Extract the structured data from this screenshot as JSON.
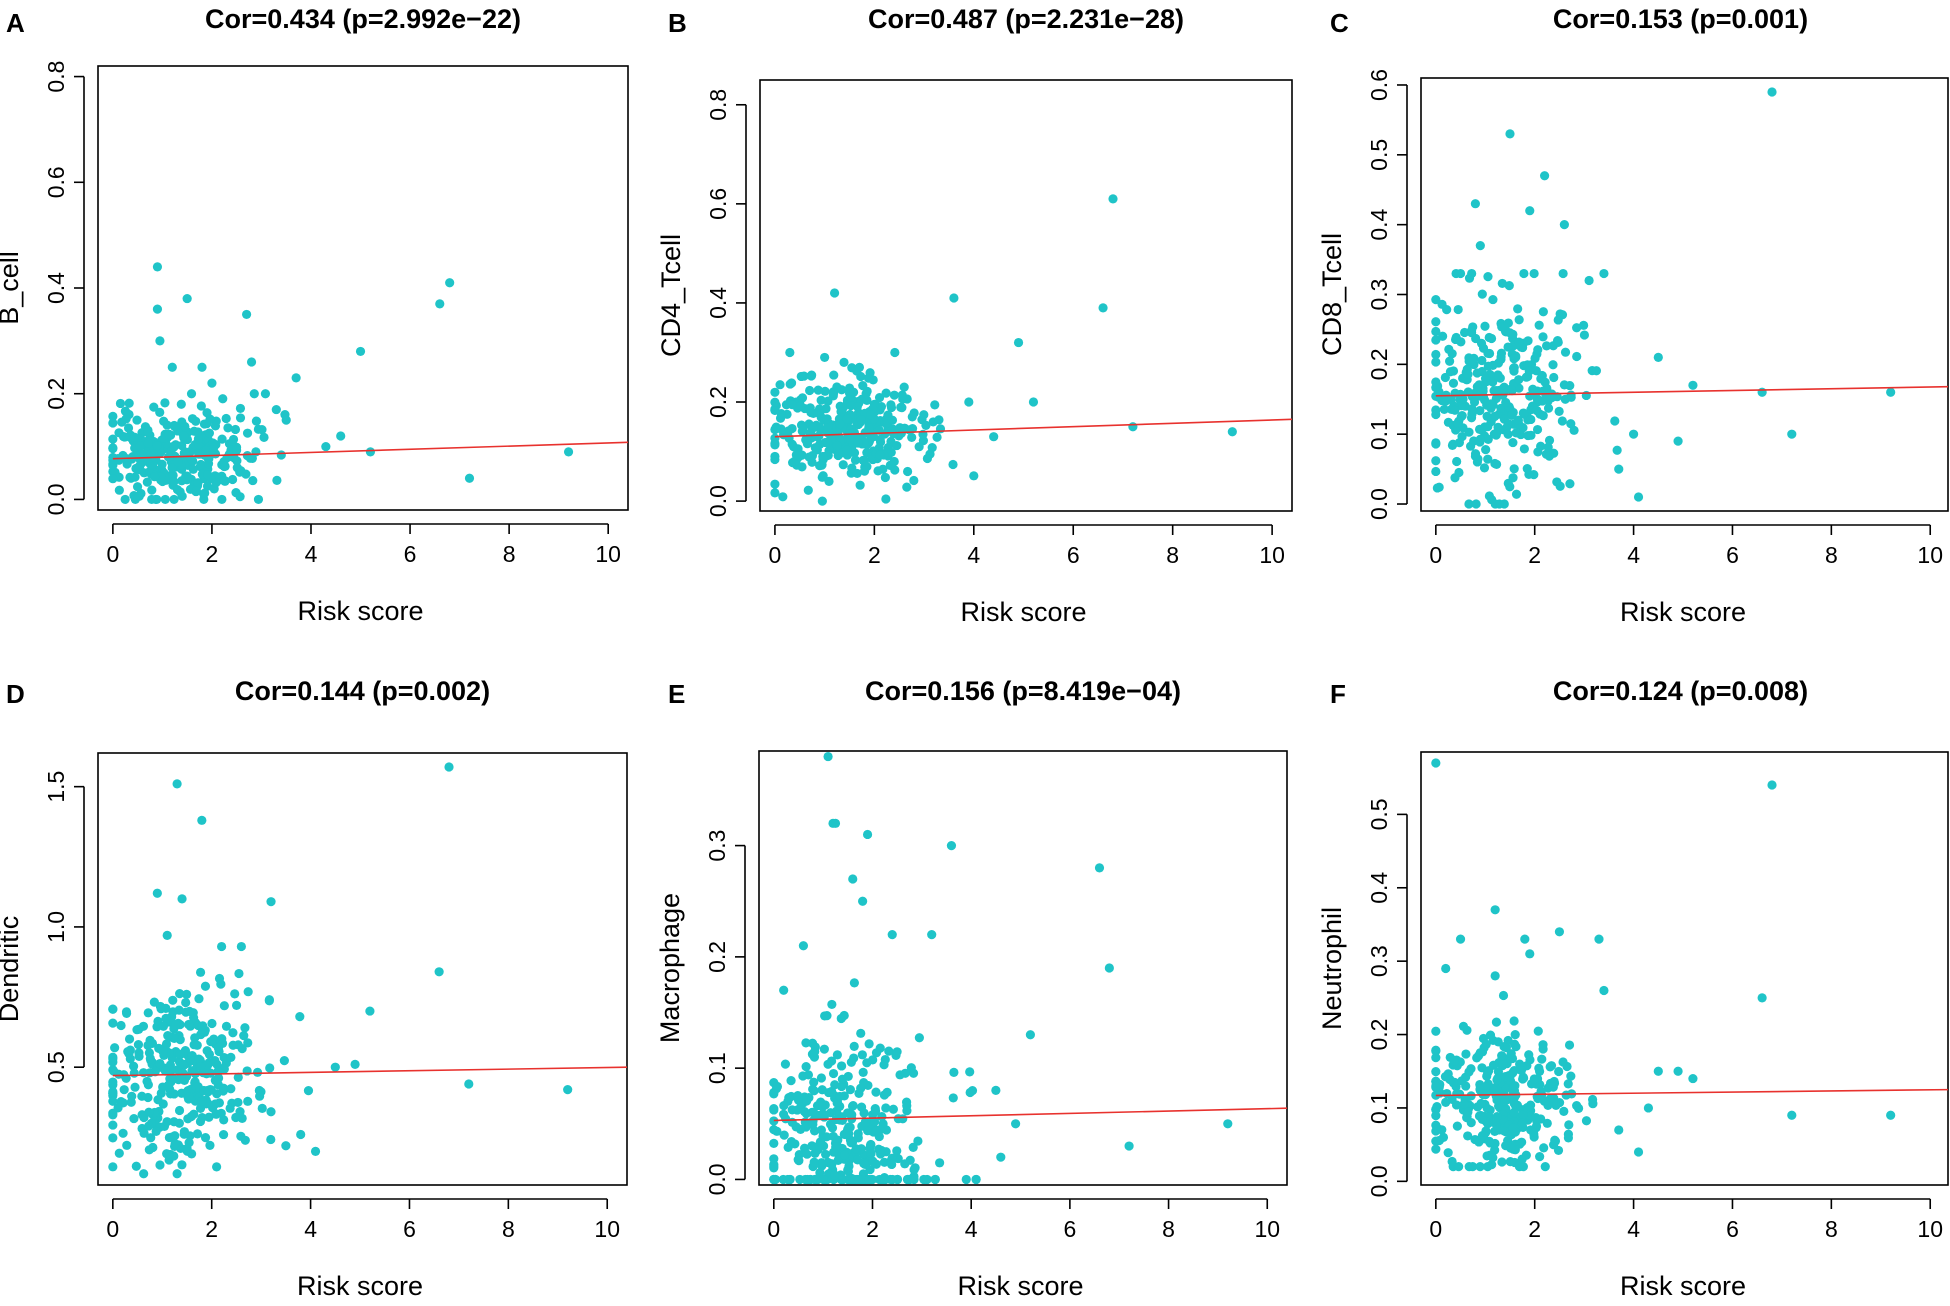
{
  "colors": {
    "point": "#1fc4c8",
    "fit_line": "#e8322e",
    "axis": "#000000"
  },
  "chart_data": [
    {
      "id": "A",
      "type": "scatter",
      "panel_label": "A",
      "title": "Cor=0.434 (p=2.992e−22)",
      "xlabel": "Risk score",
      "ylabel": "B_cell",
      "xlim": [
        -0.3,
        10.4
      ],
      "ylim": [
        -0.02,
        0.82
      ],
      "xticks": [
        0,
        2,
        4,
        6,
        8,
        10
      ],
      "xtick_labels": [
        "0",
        "2",
        "4",
        "6",
        "8",
        "10"
      ],
      "yticks": [
        0.0,
        0.2,
        0.4,
        0.6,
        0.8
      ],
      "ytick_labels": [
        "0.0",
        "0.2",
        "0.4",
        "0.6",
        "0.8"
      ],
      "fit_line": {
        "x": [
          0,
          10.4
        ],
        "y": [
          0.077,
          0.108
        ]
      },
      "cluster": {
        "n": 300,
        "xmean": 1.3,
        "xsd": 0.75,
        "xmax": 3.9,
        "ymean": 0.08,
        "ysd": 0.045,
        "ymin": 0.0,
        "ymax": 0.2,
        "seed": 11
      },
      "points": [
        [
          0.9,
          0.44
        ],
        [
          1.5,
          0.38
        ],
        [
          0.9,
          0.36
        ],
        [
          0.95,
          0.3
        ],
        [
          1.8,
          0.25
        ],
        [
          2.7,
          0.35
        ],
        [
          2.8,
          0.26
        ],
        [
          2.0,
          0.22
        ],
        [
          3.3,
          0.17
        ],
        [
          3.7,
          0.23
        ],
        [
          4.3,
          0.1
        ],
        [
          4.6,
          0.12
        ],
        [
          5.0,
          0.28
        ],
        [
          5.2,
          0.09
        ],
        [
          6.6,
          0.37
        ],
        [
          6.8,
          0.41
        ],
        [
          7.2,
          0.04
        ],
        [
          9.2,
          0.09
        ],
        [
          3.5,
          0.15
        ],
        [
          1.2,
          0.25
        ]
      ]
    },
    {
      "id": "B",
      "type": "scatter",
      "panel_label": "B",
      "title": "Cor=0.487 (p=2.231e−28)",
      "xlabel": "Risk score",
      "ylabel": "CD4_Tcell",
      "xlim": [
        -0.3,
        10.4
      ],
      "ylim": [
        -0.02,
        0.85
      ],
      "xticks": [
        0,
        2,
        4,
        6,
        8,
        10
      ],
      "xtick_labels": [
        "0",
        "2",
        "4",
        "6",
        "8",
        "10"
      ],
      "yticks": [
        0.0,
        0.2,
        0.4,
        0.6,
        0.8
      ],
      "ytick_labels": [
        "0.0",
        "0.2",
        "0.4",
        "0.6",
        "0.8"
      ],
      "fit_line": {
        "x": [
          0,
          10.4
        ],
        "y": [
          0.13,
          0.165
        ]
      },
      "cluster": {
        "n": 320,
        "xmean": 1.4,
        "xsd": 0.8,
        "xmax": 4.0,
        "ymean": 0.14,
        "ysd": 0.055,
        "ymin": 0.0,
        "ymax": 0.3,
        "seed": 23
      },
      "points": [
        [
          1.2,
          0.42
        ],
        [
          3.6,
          0.41
        ],
        [
          4.9,
          0.32
        ],
        [
          5.2,
          0.2
        ],
        [
          6.6,
          0.39
        ],
        [
          6.8,
          0.61
        ],
        [
          7.2,
          0.15
        ],
        [
          9.2,
          0.14
        ],
        [
          4.4,
          0.13
        ],
        [
          3.9,
          0.2
        ],
        [
          2.6,
          0.23
        ],
        [
          1.0,
          0.29
        ],
        [
          0.3,
          0.3
        ],
        [
          1.7,
          0.27
        ],
        [
          2.4,
          0.08
        ]
      ]
    },
    {
      "id": "C",
      "type": "scatter",
      "panel_label": "C",
      "title": "Cor=0.153 (p=0.001)",
      "xlabel": "Risk score",
      "ylabel": "CD8_Tcell",
      "xlim": [
        -0.3,
        10.4
      ],
      "ylim": [
        -0.01,
        0.61
      ],
      "xticks": [
        0,
        2,
        4,
        6,
        8,
        10
      ],
      "xtick_labels": [
        "0",
        "2",
        "4",
        "6",
        "8",
        "10"
      ],
      "yticks": [
        0.0,
        0.1,
        0.2,
        0.3,
        0.4,
        0.5,
        0.6
      ],
      "ytick_labels": [
        "0.0",
        "0.1",
        "0.2",
        "0.3",
        "0.4",
        "0.5",
        "0.6"
      ],
      "fit_line": {
        "x": [
          0,
          10.4
        ],
        "y": [
          0.155,
          0.168
        ]
      },
      "cluster": {
        "n": 330,
        "xmean": 1.35,
        "xsd": 0.8,
        "xmax": 4.1,
        "ymean": 0.16,
        "ysd": 0.07,
        "ymin": 0.0,
        "ymax": 0.33,
        "seed": 37
      },
      "points": [
        [
          1.5,
          0.53
        ],
        [
          2.2,
          0.47
        ],
        [
          0.8,
          0.43
        ],
        [
          1.9,
          0.42
        ],
        [
          2.6,
          0.4
        ],
        [
          0.9,
          0.37
        ],
        [
          6.8,
          0.59
        ],
        [
          4.5,
          0.21
        ],
        [
          5.2,
          0.17
        ],
        [
          6.6,
          0.16
        ],
        [
          7.2,
          0.1
        ],
        [
          9.2,
          0.16
        ],
        [
          4.1,
          0.01
        ],
        [
          3.7,
          0.05
        ],
        [
          4.0,
          0.1
        ],
        [
          3.4,
          0.33
        ],
        [
          3.1,
          0.32
        ],
        [
          0.5,
          0.33
        ],
        [
          4.9,
          0.09
        ]
      ]
    },
    {
      "id": "D",
      "type": "scatter",
      "panel_label": "D",
      "title": "Cor=0.144 (p=0.002)",
      "xlabel": "Risk score",
      "ylabel": "Dendritic",
      "xlim": [
        -0.3,
        10.4
      ],
      "ylim": [
        0.08,
        1.62
      ],
      "xticks": [
        0,
        2,
        4,
        6,
        8,
        10
      ],
      "xtick_labels": [
        "0",
        "2",
        "4",
        "6",
        "8",
        "10"
      ],
      "yticks": [
        0.5,
        1.0,
        1.5
      ],
      "ytick_labels": [
        "0.5",
        "1.0",
        "1.5"
      ],
      "fit_line": {
        "x": [
          0,
          10.4
        ],
        "y": [
          0.47,
          0.5
        ]
      },
      "cluster": {
        "n": 330,
        "xmean": 1.35,
        "xsd": 0.8,
        "xmax": 4.1,
        "ymean": 0.47,
        "ysd": 0.15,
        "ymin": 0.12,
        "ymax": 0.9,
        "seed": 53
      },
      "points": [
        [
          1.3,
          1.51
        ],
        [
          1.8,
          1.38
        ],
        [
          6.8,
          1.57
        ],
        [
          0.9,
          1.12
        ],
        [
          1.4,
          1.1
        ],
        [
          3.2,
          1.09
        ],
        [
          1.1,
          0.97
        ],
        [
          2.2,
          0.93
        ],
        [
          2.6,
          0.93
        ],
        [
          6.6,
          0.84
        ],
        [
          5.2,
          0.7
        ],
        [
          4.5,
          0.5
        ],
        [
          4.9,
          0.51
        ],
        [
          7.2,
          0.44
        ],
        [
          9.2,
          0.42
        ],
        [
          4.1,
          0.2
        ],
        [
          3.8,
          0.26
        ],
        [
          3.5,
          0.22
        ],
        [
          1.3,
          0.12
        ]
      ]
    },
    {
      "id": "E",
      "type": "scatter",
      "panel_label": "E",
      "title": "Cor=0.156 (p=8.419e−04)",
      "xlabel": "Risk score",
      "ylabel": "Macrophage",
      "xlim": [
        -0.3,
        10.4
      ],
      "ylim": [
        -0.005,
        0.385
      ],
      "xticks": [
        0,
        2,
        4,
        6,
        8,
        10
      ],
      "xtick_labels": [
        "0",
        "2",
        "4",
        "6",
        "8",
        "10"
      ],
      "yticks": [
        0.0,
        0.1,
        0.2,
        0.3
      ],
      "ytick_labels": [
        "0.0",
        "0.1",
        "0.2",
        "0.3"
      ],
      "fit_line": {
        "x": [
          0,
          10.4
        ],
        "y": [
          0.053,
          0.064
        ]
      },
      "cluster": {
        "n": 340,
        "xmean": 1.4,
        "xsd": 0.85,
        "xmax": 4.1,
        "ymean": 0.045,
        "ysd": 0.045,
        "ymin": 0.0,
        "ymax": 0.18,
        "seed": 71
      },
      "points": [
        [
          1.1,
          0.38
        ],
        [
          1.2,
          0.32
        ],
        [
          1.25,
          0.32
        ],
        [
          1.9,
          0.31
        ],
        [
          3.6,
          0.3
        ],
        [
          1.6,
          0.27
        ],
        [
          1.8,
          0.25
        ],
        [
          2.4,
          0.22
        ],
        [
          3.2,
          0.22
        ],
        [
          6.6,
          0.28
        ],
        [
          6.8,
          0.19
        ],
        [
          5.2,
          0.13
        ],
        [
          4.5,
          0.08
        ],
        [
          4.9,
          0.05
        ],
        [
          7.2,
          0.03
        ],
        [
          9.2,
          0.05
        ],
        [
          4.6,
          0.02
        ],
        [
          3.9,
          0.0
        ],
        [
          4.1,
          0.0
        ],
        [
          0.2,
          0.17
        ],
        [
          0.6,
          0.21
        ]
      ]
    },
    {
      "id": "F",
      "type": "scatter",
      "panel_label": "F",
      "title": "Cor=0.124 (p=0.008)",
      "xlabel": "Risk score",
      "ylabel": "Neutrophil",
      "xlim": [
        -0.3,
        10.4
      ],
      "ylim": [
        -0.005,
        0.585
      ],
      "xticks": [
        0,
        2,
        4,
        6,
        8,
        10
      ],
      "xtick_labels": [
        "0",
        "2",
        "4",
        "6",
        "8",
        "10"
      ],
      "yticks": [
        0.0,
        0.1,
        0.2,
        0.3,
        0.4,
        0.5
      ],
      "ytick_labels": [
        "0.0",
        "0.1",
        "0.2",
        "0.3",
        "0.4",
        "0.5"
      ],
      "fit_line": {
        "x": [
          0,
          10.4
        ],
        "y": [
          0.117,
          0.125
        ]
      },
      "cluster": {
        "n": 330,
        "xmean": 1.3,
        "xsd": 0.75,
        "xmax": 4.0,
        "ymean": 0.11,
        "ysd": 0.045,
        "ymin": 0.02,
        "ymax": 0.26,
        "seed": 89
      },
      "points": [
        [
          0.0,
          0.57
        ],
        [
          6.8,
          0.54
        ],
        [
          1.2,
          0.37
        ],
        [
          2.5,
          0.34
        ],
        [
          1.8,
          0.33
        ],
        [
          0.5,
          0.33
        ],
        [
          3.3,
          0.33
        ],
        [
          1.9,
          0.31
        ],
        [
          0.2,
          0.29
        ],
        [
          1.2,
          0.28
        ],
        [
          3.4,
          0.26
        ],
        [
          6.6,
          0.25
        ],
        [
          4.5,
          0.15
        ],
        [
          4.9,
          0.15
        ],
        [
          5.2,
          0.14
        ],
        [
          7.2,
          0.09
        ],
        [
          9.2,
          0.09
        ],
        [
          4.1,
          0.04
        ],
        [
          3.7,
          0.07
        ],
        [
          4.3,
          0.1
        ]
      ]
    }
  ]
}
